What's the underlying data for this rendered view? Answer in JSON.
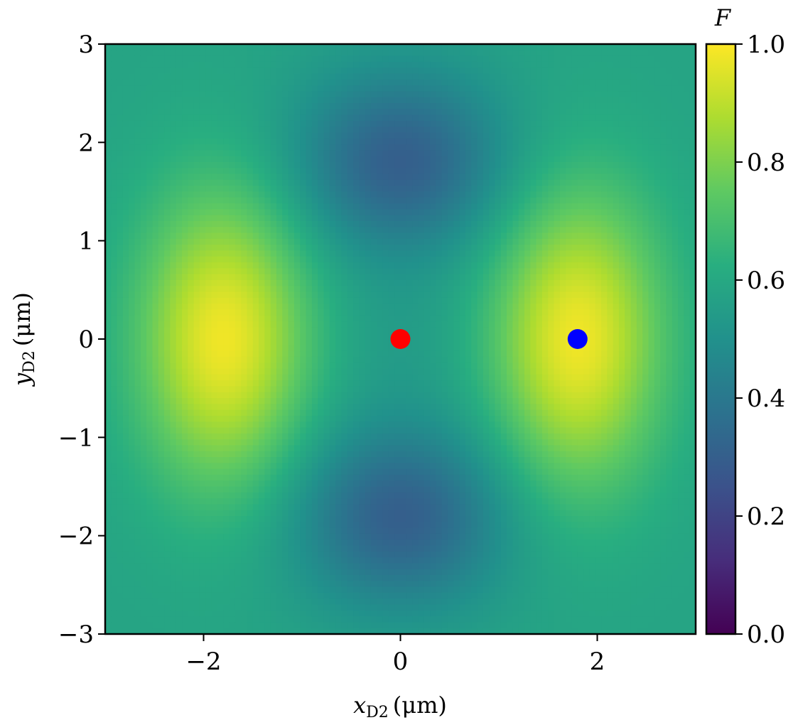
{
  "chart_data": {
    "type": "heatmap",
    "xlabel": "x_D2 (μm)",
    "xlabel_parts": {
      "var": "x",
      "sub": "D2",
      "unit": "(μm)"
    },
    "ylabel": "y_D2 (μm)",
    "ylabel_parts": {
      "var": "y",
      "sub": "D2",
      "unit": "(μm)"
    },
    "xlim": [
      -3,
      3
    ],
    "ylim": [
      -3,
      3
    ],
    "x_ticks": [
      -2,
      0,
      2
    ],
    "x_tick_labels": [
      "−2",
      "0",
      "2"
    ],
    "y_ticks": [
      -3,
      -2,
      -1,
      0,
      1,
      2,
      3
    ],
    "y_tick_labels": [
      "−3",
      "−2",
      "−1",
      "0",
      "1",
      "2",
      "3"
    ],
    "colormap": "viridis",
    "colorbar": {
      "label": "F",
      "range": [
        0.0,
        1.0
      ],
      "ticks": [
        0.0,
        0.2,
        0.4,
        0.6,
        0.8,
        1.0
      ],
      "tick_labels": [
        "0.0",
        "0.2",
        "0.4",
        "0.6",
        "0.8",
        "1.0"
      ]
    },
    "field_features": [
      {
        "kind": "maximum",
        "x": -1.8,
        "y": 0.0,
        "value": 0.98
      },
      {
        "kind": "maximum",
        "x": 1.8,
        "y": 0.0,
        "value": 0.98
      },
      {
        "kind": "minimum",
        "x": 0.0,
        "y": 1.8,
        "value": 0.3
      },
      {
        "kind": "minimum",
        "x": 0.0,
        "y": -1.8,
        "value": 0.3
      },
      {
        "kind": "saddle",
        "x": 0.0,
        "y": 0.0,
        "value": 0.55
      },
      {
        "kind": "background",
        "value": 0.58
      }
    ],
    "markers": [
      {
        "x": 0.0,
        "y": 0.0,
        "color": "#ff0000"
      },
      {
        "x": 1.8,
        "y": 0.0,
        "color": "#0000ff"
      }
    ]
  }
}
